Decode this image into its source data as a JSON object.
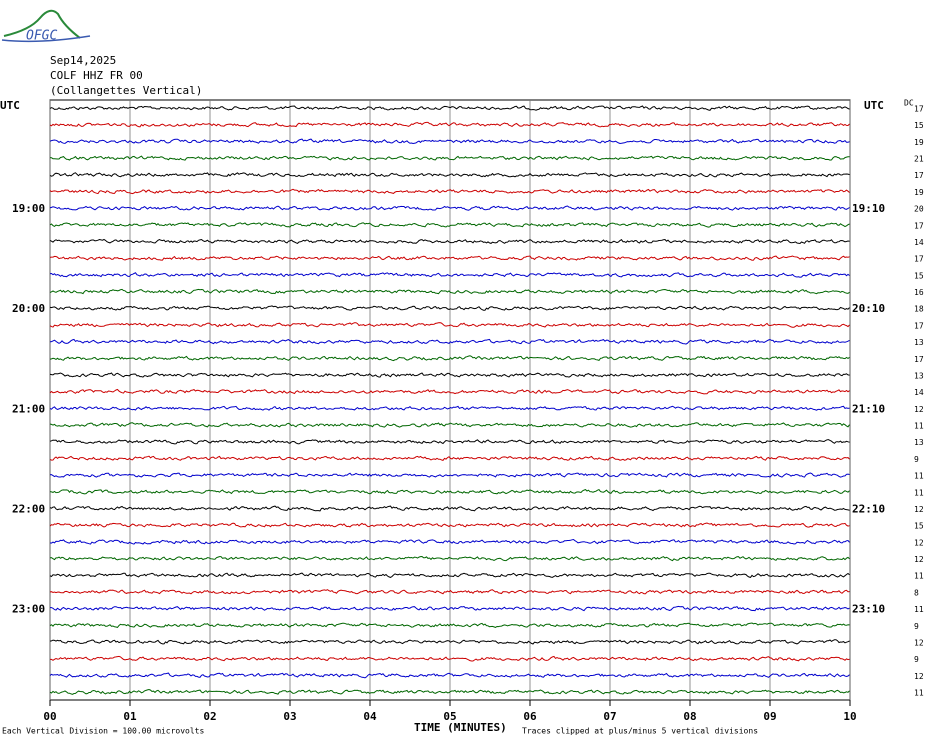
{
  "logo": "OFGC",
  "header": {
    "date": "Sep14,2025",
    "station": "COLF HHZ FR 00",
    "site": "(Collangettes Vertical)"
  },
  "utc_label": "UTC",
  "dc_label": "DC",
  "left_labels": [
    null,
    null,
    null,
    null,
    null,
    null,
    "19:00",
    null,
    null,
    null,
    null,
    null,
    "20:00",
    null,
    null,
    null,
    null,
    null,
    "21:00",
    null,
    null,
    null,
    null,
    null,
    "22:00",
    null,
    null,
    null,
    null,
    null,
    "23:00",
    null,
    null,
    null,
    null,
    null
  ],
  "right_labels": [
    null,
    null,
    null,
    null,
    null,
    null,
    "19:10",
    null,
    null,
    null,
    null,
    null,
    "20:10",
    null,
    null,
    null,
    null,
    null,
    "21:10",
    null,
    null,
    null,
    null,
    null,
    "22:10",
    null,
    null,
    null,
    null,
    null,
    "23:10",
    null,
    null,
    null,
    null,
    null
  ],
  "dc_values": [
    17,
    15,
    19,
    21,
    17,
    19,
    20,
    17,
    14,
    17,
    15,
    16,
    18,
    17,
    13,
    17,
    13,
    14,
    12,
    11,
    13,
    9,
    11,
    11,
    12,
    15,
    12,
    12,
    11,
    8,
    11,
    9,
    12,
    9,
    12,
    11
  ],
  "trace_colors": [
    "#000000",
    "#cc0000",
    "#0000cc",
    "#006600"
  ],
  "x_ticks": [
    "00",
    "01",
    "02",
    "03",
    "04",
    "05",
    "06",
    "07",
    "08",
    "09",
    "10"
  ],
  "footer": {
    "scale": "Each Vertical Division =  100.00 microvolts",
    "x_title": "TIME (MINUTES)",
    "clip_note": "Traces clipped at plus/minus 5 vertical divisions"
  }
}
